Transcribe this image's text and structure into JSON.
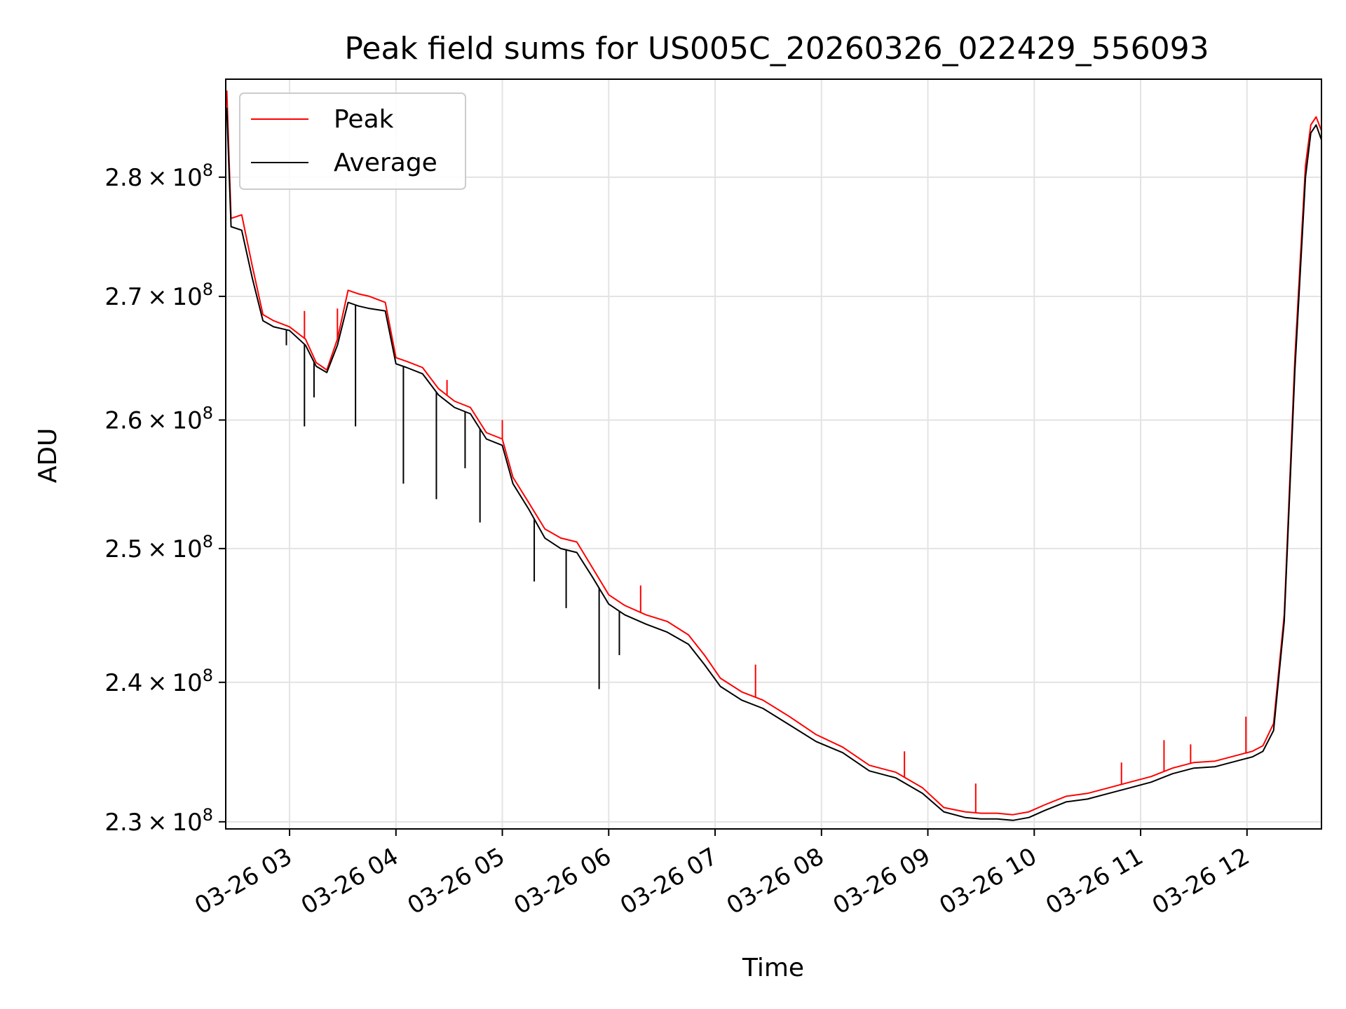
{
  "chart_data": {
    "type": "line",
    "title": "Peak field sums for US005C_20260326_022429_556093",
    "xlabel": "Time",
    "ylabel": "ADU",
    "grid": true,
    "legend_position": "top-left",
    "y_scale": "log",
    "x_unit": "hours since 03-26 00:00",
    "xlim": [
      2.4,
      12.7
    ],
    "ylim": [
      229500000,
      288500000
    ],
    "x_ticks": [
      {
        "value": 3,
        "label": "03-26 03"
      },
      {
        "value": 4,
        "label": "03-26 04"
      },
      {
        "value": 5,
        "label": "03-26 05"
      },
      {
        "value": 6,
        "label": "03-26 06"
      },
      {
        "value": 7,
        "label": "03-26 07"
      },
      {
        "value": 8,
        "label": "03-26 08"
      },
      {
        "value": 9,
        "label": "03-26 09"
      },
      {
        "value": 10,
        "label": "03-26 10"
      },
      {
        "value": 11,
        "label": "03-26 11"
      },
      {
        "value": 12,
        "label": "03-26 12"
      }
    ],
    "y_ticks": [
      {
        "value": 230000000,
        "mantissa": "2.3",
        "exponent": "8"
      },
      {
        "value": 240000000,
        "mantissa": "2.4",
        "exponent": "8"
      },
      {
        "value": 250000000,
        "mantissa": "2.5",
        "exponent": "8"
      },
      {
        "value": 260000000,
        "mantissa": "2.6",
        "exponent": "8"
      },
      {
        "value": 270000000,
        "mantissa": "2.7",
        "exponent": "8"
      },
      {
        "value": 280000000,
        "mantissa": "2.8",
        "exponent": "8"
      }
    ],
    "series": [
      {
        "name": "Peak",
        "color": "#ff0000",
        "x": [
          2.41,
          2.45,
          2.55,
          2.65,
          2.75,
          2.85,
          3.0,
          3.15,
          3.25,
          3.35,
          3.45,
          3.55,
          3.65,
          3.75,
          3.9,
          4.0,
          4.1,
          4.25,
          4.4,
          4.55,
          4.7,
          4.85,
          5.0,
          5.1,
          5.25,
          5.4,
          5.55,
          5.7,
          5.85,
          6.0,
          6.15,
          6.35,
          6.55,
          6.75,
          6.9,
          7.05,
          7.25,
          7.45,
          7.7,
          7.95,
          8.2,
          8.45,
          8.7,
          8.95,
          9.15,
          9.35,
          9.5,
          9.65,
          9.8,
          9.95,
          10.1,
          10.3,
          10.5,
          10.7,
          10.9,
          11.1,
          11.3,
          11.5,
          11.7,
          11.9,
          12.05,
          12.15,
          12.25,
          12.35,
          12.45,
          12.55,
          12.6,
          12.65,
          12.7
        ],
        "y": [
          287500000,
          276500000,
          276800000,
          272500000,
          268500000,
          268000000,
          267500000,
          266500000,
          264600000,
          264000000,
          266500000,
          270500000,
          270200000,
          270000000,
          269500000,
          265000000,
          264700000,
          264200000,
          262500000,
          261500000,
          261000000,
          259000000,
          258500000,
          255500000,
          253500000,
          251500000,
          250800000,
          250500000,
          248500000,
          246500000,
          245700000,
          245000000,
          244500000,
          243500000,
          242000000,
          240300000,
          239300000,
          238700000,
          237500000,
          236200000,
          235300000,
          234000000,
          233500000,
          232400000,
          231000000,
          230700000,
          230600000,
          230600000,
          230500000,
          230700000,
          231200000,
          231800000,
          232000000,
          232400000,
          232800000,
          233200000,
          233800000,
          234200000,
          234300000,
          234700000,
          235000000,
          235400000,
          237000000,
          245000000,
          265000000,
          281000000,
          284500000,
          285200000,
          284000000
        ]
      },
      {
        "name": "Average",
        "color": "#000000",
        "x": [
          2.41,
          2.45,
          2.55,
          2.65,
          2.75,
          2.85,
          3.0,
          3.15,
          3.25,
          3.35,
          3.45,
          3.55,
          3.65,
          3.75,
          3.9,
          4.0,
          4.1,
          4.25,
          4.4,
          4.55,
          4.7,
          4.85,
          5.0,
          5.1,
          5.25,
          5.4,
          5.55,
          5.7,
          5.85,
          6.0,
          6.15,
          6.35,
          6.55,
          6.75,
          6.9,
          7.05,
          7.25,
          7.45,
          7.7,
          7.95,
          8.2,
          8.45,
          8.7,
          8.95,
          9.15,
          9.35,
          9.5,
          9.65,
          9.8,
          9.95,
          10.1,
          10.3,
          10.5,
          10.7,
          10.9,
          11.1,
          11.3,
          11.5,
          11.7,
          11.9,
          12.05,
          12.15,
          12.25,
          12.35,
          12.45,
          12.55,
          12.6,
          12.65,
          12.7
        ],
        "y": [
          286000000,
          275800000,
          275500000,
          271500000,
          268000000,
          267500000,
          267200000,
          266000000,
          264300000,
          263800000,
          266000000,
          269500000,
          269200000,
          269000000,
          268800000,
          264500000,
          264200000,
          263700000,
          262000000,
          261000000,
          260500000,
          258500000,
          258000000,
          255000000,
          253000000,
          250800000,
          250000000,
          249700000,
          247800000,
          245800000,
          245000000,
          244300000,
          243700000,
          242800000,
          241300000,
          239700000,
          238700000,
          238100000,
          236900000,
          235700000,
          234900000,
          233600000,
          233100000,
          232000000,
          230700000,
          230300000,
          230200000,
          230200000,
          230100000,
          230300000,
          230800000,
          231400000,
          231600000,
          232000000,
          232400000,
          232800000,
          233400000,
          233800000,
          233900000,
          234300000,
          234600000,
          235000000,
          236500000,
          244500000,
          264000000,
          280000000,
          283800000,
          284500000,
          283200000
        ]
      }
    ],
    "spikes": [
      {
        "x": 2.97,
        "y": 266000000,
        "series": "Average"
      },
      {
        "x": 3.14,
        "y": 259500000,
        "series": "Average"
      },
      {
        "x": 3.23,
        "y": 261800000,
        "series": "Average"
      },
      {
        "x": 3.62,
        "y": 259500000,
        "series": "Average"
      },
      {
        "x": 4.07,
        "y": 255000000,
        "series": "Average"
      },
      {
        "x": 4.38,
        "y": 253800000,
        "series": "Average"
      },
      {
        "x": 4.65,
        "y": 256200000,
        "series": "Average"
      },
      {
        "x": 4.79,
        "y": 252000000,
        "series": "Average"
      },
      {
        "x": 5.3,
        "y": 247500000,
        "series": "Average"
      },
      {
        "x": 5.6,
        "y": 245500000,
        "series": "Average"
      },
      {
        "x": 5.91,
        "y": 239500000,
        "series": "Average"
      },
      {
        "x": 6.1,
        "y": 242000000,
        "series": "Average"
      },
      {
        "x": 3.14,
        "y": 268800000,
        "series": "Peak"
      },
      {
        "x": 3.45,
        "y": 269000000,
        "series": "Peak"
      },
      {
        "x": 4.48,
        "y": 263200000,
        "series": "Peak"
      },
      {
        "x": 5.0,
        "y": 260000000,
        "series": "Peak"
      },
      {
        "x": 6.3,
        "y": 247200000,
        "series": "Peak"
      },
      {
        "x": 7.38,
        "y": 241300000,
        "series": "Peak"
      },
      {
        "x": 8.78,
        "y": 235000000,
        "series": "Peak"
      },
      {
        "x": 9.45,
        "y": 232700000,
        "series": "Peak"
      },
      {
        "x": 10.82,
        "y": 234200000,
        "series": "Peak"
      },
      {
        "x": 11.22,
        "y": 235800000,
        "series": "Peak"
      },
      {
        "x": 11.47,
        "y": 235500000,
        "series": "Peak"
      },
      {
        "x": 11.99,
        "y": 237500000,
        "series": "Peak"
      },
      {
        "x": 12.4,
        "y": 255000000,
        "series": "Peak"
      }
    ]
  }
}
